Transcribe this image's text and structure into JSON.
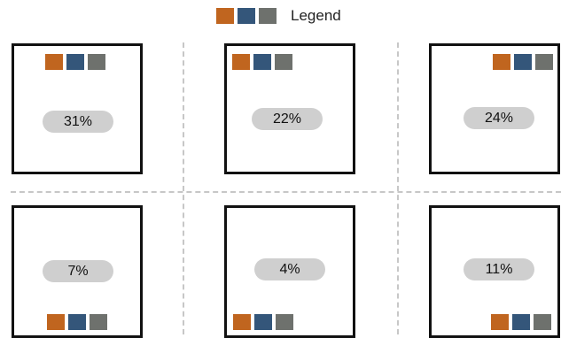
{
  "legend": {
    "label": "Legend",
    "colors": [
      "#c0651f",
      "#34567a",
      "#6e716d"
    ]
  },
  "tiles": [
    {
      "value": "31%"
    },
    {
      "value": "22%"
    },
    {
      "value": "24%"
    },
    {
      "value": "7%"
    },
    {
      "value": "4%"
    },
    {
      "value": "11%"
    }
  ]
}
